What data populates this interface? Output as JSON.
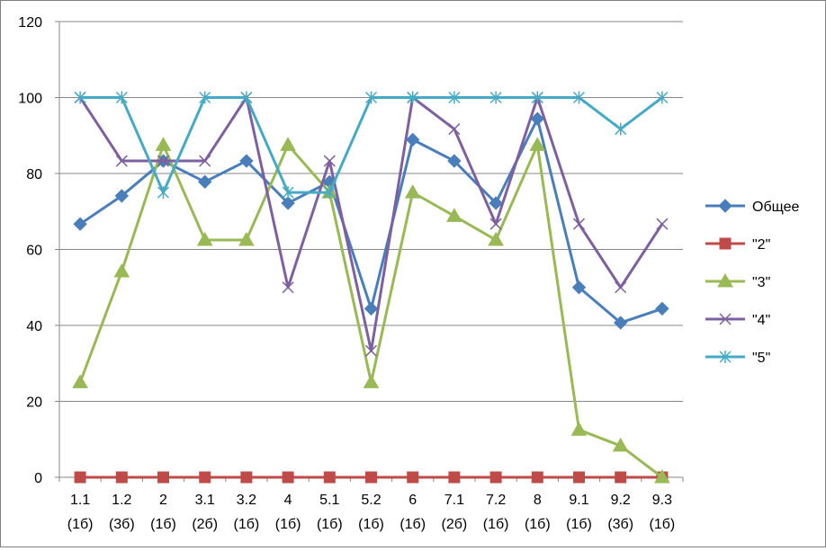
{
  "chart_data": {
    "type": "line",
    "categories": [
      "1.1",
      "1.2",
      "2",
      "3.1",
      "3.2",
      "4",
      "5.1",
      "5.2",
      "6",
      "7.1",
      "7.2",
      "8",
      "9.1",
      "9.2",
      "9.3"
    ],
    "category_sublabels": [
      "(1б)",
      "(3б)",
      "(1б)",
      "(2б)",
      "(1б)",
      "(1б)",
      "(1б)",
      "(1б)",
      "(1б)",
      "(2б)",
      "(1б)",
      "(1б)",
      "(1б)",
      "(3б)",
      "(1б)"
    ],
    "ylim": [
      0,
      120
    ],
    "yticks": [
      "0",
      "20",
      "40",
      "60",
      "80",
      "100",
      "120"
    ],
    "grid": "horizontal",
    "legend_position": "right",
    "series": [
      {
        "name": "Общее",
        "color": "#4a7ebb",
        "marker": "diamond",
        "values": [
          66.7,
          74.1,
          83.3,
          77.8,
          83.3,
          72.2,
          77.8,
          44.4,
          88.9,
          83.3,
          72.2,
          94.4,
          50,
          40.7,
          44.4
        ]
      },
      {
        "name": "\"2\"",
        "color": "#be4b48",
        "marker": "square",
        "values": [
          0,
          0,
          0,
          0,
          0,
          0,
          0,
          0,
          0,
          0,
          0,
          0,
          0,
          0,
          0
        ]
      },
      {
        "name": "\"3\"",
        "color": "#98b954",
        "marker": "triangle",
        "values": [
          25,
          54.2,
          87.5,
          62.5,
          62.5,
          87.5,
          75,
          25,
          75,
          68.8,
          62.5,
          87.5,
          12.5,
          8.3,
          0
        ]
      },
      {
        "name": "\"4\"",
        "color": "#7d60a0",
        "marker": "x",
        "values": [
          100,
          83.3,
          83.3,
          83.3,
          100,
          50,
          83.3,
          33.3,
          100,
          91.7,
          66.7,
          100,
          66.7,
          50,
          66.7
        ]
      },
      {
        "name": "\"5\"",
        "color": "#46aac5",
        "marker": "star",
        "values": [
          100,
          100,
          75,
          100,
          100,
          75,
          75,
          100,
          100,
          100,
          100,
          100,
          100,
          91.7,
          100
        ]
      }
    ]
  }
}
